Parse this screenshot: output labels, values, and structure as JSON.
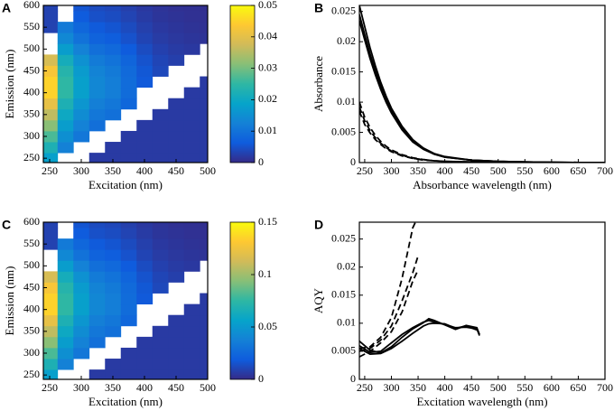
{
  "chart_data": [
    {
      "type": "heatmap",
      "panel_label": "A",
      "xlabel": "Excitation (nm)",
      "ylabel": "Emission (nm)",
      "x": [
        250,
        275,
        300,
        325,
        350,
        375,
        400,
        425,
        450,
        475,
        500
      ],
      "y": [
        250,
        275,
        300,
        325,
        350,
        375,
        400,
        425,
        450,
        475,
        500,
        525,
        550,
        575,
        600
      ],
      "z": [
        [
          0.018,
          null,
          null,
          0.002,
          0.002,
          0.002,
          0.002,
          0.002,
          0.002,
          0.002,
          0.002
        ],
        [
          0.0225,
          0.0125,
          null,
          null,
          0.002,
          0.002,
          0.002,
          0.002,
          0.002,
          0.002,
          0.002
        ],
        [
          0.027,
          0.015,
          0.0108,
          null,
          null,
          0.002,
          0.002,
          0.002,
          0.002,
          0.002,
          0.002
        ],
        [
          0.0315,
          0.0175,
          0.0126,
          0.0095,
          null,
          null,
          0.002,
          0.002,
          0.002,
          0.002,
          0.002
        ],
        [
          0.036,
          0.02,
          0.0144,
          0.0108,
          0.0096,
          null,
          null,
          0.002,
          0.002,
          0.002,
          0.002
        ],
        [
          0.0405,
          0.0225,
          0.0162,
          0.0122,
          0.0108,
          0.0081,
          null,
          null,
          0.002,
          0.002,
          0.002
        ],
        [
          0.045,
          0.025,
          0.018,
          0.0135,
          0.012,
          0.009,
          null,
          null,
          null,
          0.002,
          0.002
        ],
        [
          0.045,
          0.025,
          0.018,
          0.0135,
          0.012,
          0.009,
          0.006,
          null,
          null,
          null,
          0.002
        ],
        [
          0.0428,
          0.0238,
          0.0171,
          0.0128,
          0.0114,
          0.0086,
          0.0057,
          0.0038,
          null,
          null,
          null
        ],
        [
          0.0383,
          0.0213,
          0.0153,
          0.0115,
          0.0102,
          0.0077,
          0.0051,
          0.0034,
          0.0026,
          null,
          null
        ],
        [
          null,
          0.0175,
          0.0126,
          0.0095,
          0.0084,
          0.0063,
          0.0042,
          0.0028,
          0.0021,
          0.0018,
          null
        ],
        [
          null,
          0.0138,
          0.0099,
          0.0074,
          0.0066,
          0.005,
          0.0033,
          0.0022,
          0.0017,
          0.0014,
          0.0011
        ],
        [
          0.003,
          0.0113,
          0.0081,
          0.0061,
          0.0054,
          0.0041,
          0.0027,
          0.0018,
          0.0014,
          0.0011,
          0.0009
        ],
        [
          0.003,
          null,
          0.0063,
          0.0047,
          0.0042,
          0.0032,
          0.0021,
          0.0014,
          0.0011,
          0.0009,
          0.0007
        ],
        [
          0.003,
          null,
          0.0054,
          0.0041,
          0.0036,
          0.0027,
          0.0018,
          0.0012,
          0.0009,
          0.0008,
          0.0006
        ]
      ],
      "xlim": [
        240,
        500
      ],
      "ylim": [
        240,
        600
      ],
      "xticks": [
        250,
        300,
        350,
        400,
        450,
        500
      ],
      "yticks": [
        250,
        300,
        350,
        400,
        450,
        500,
        550,
        600
      ],
      "zlim": [
        0,
        0.05
      ],
      "zticks": [
        0,
        0.01,
        0.02,
        0.03,
        0.04,
        0.05
      ],
      "colormap": [
        "#352a87",
        "#0f5cdd",
        "#1481d6",
        "#06a4ca",
        "#2eb7a4",
        "#87bf77",
        "#d1bb59",
        "#fec832",
        "#f9fb0e"
      ]
    },
    {
      "type": "line",
      "panel_label": "B",
      "xlabel": "Absorbance wavelength (nm)",
      "ylabel": "Absorbance",
      "x": [
        240,
        250,
        260,
        270,
        280,
        290,
        300,
        320,
        340,
        360,
        380,
        400,
        450,
        500,
        550,
        600,
        650,
        700
      ],
      "series": [
        {
          "color": "#000000",
          "dash": false,
          "values": [
            0.026,
            0.0225,
            0.019,
            0.016,
            0.0133,
            0.011,
            0.009,
            0.006,
            0.0038,
            0.0024,
            0.0015,
            0.001,
            0.0004,
            0.0002,
            0.0001,
            5e-05,
            2e-05,
            0
          ]
        },
        {
          "color": "#000000",
          "dash": false,
          "values": [
            0.0245,
            0.0212,
            0.018,
            0.0152,
            0.0127,
            0.0105,
            0.0086,
            0.0057,
            0.0036,
            0.0023,
            0.0014,
            0.0009,
            0.0004,
            0.0002,
            0.0001,
            5e-05,
            2e-05,
            0
          ]
        },
        {
          "color": "#000000",
          "dash": false,
          "values": [
            0.0235,
            0.0203,
            0.0172,
            0.0145,
            0.0121,
            0.01,
            0.0082,
            0.0054,
            0.0034,
            0.0022,
            0.0014,
            0.0009,
            0.0004,
            0.0002,
            0.0001,
            5e-05,
            2e-05,
            0
          ]
        },
        {
          "color": "#000000",
          "dash": true,
          "values": [
            0.01,
            0.0075,
            0.0058,
            0.0045,
            0.0035,
            0.0027,
            0.0021,
            0.0013,
            0.0008,
            0.0005,
            0.0003,
            0.0002,
            0.0001,
            5e-05,
            0,
            0,
            0,
            0
          ]
        },
        {
          "color": "#000000",
          "dash": true,
          "values": [
            0.0092,
            0.0069,
            0.0053,
            0.0041,
            0.0032,
            0.0025,
            0.0019,
            0.0012,
            0.0007,
            0.0005,
            0.0003,
            0.0002,
            0.0001,
            5e-05,
            0,
            0,
            0,
            0
          ]
        },
        {
          "color": "#000000",
          "dash": true,
          "values": [
            0.0085,
            0.0063,
            0.0049,
            0.0038,
            0.003,
            0.0023,
            0.0018,
            0.0011,
            0.0007,
            0.0004,
            0.0003,
            0.0002,
            0.0001,
            5e-05,
            0,
            0,
            0,
            0
          ]
        }
      ],
      "xlim": [
        240,
        700
      ],
      "ylim": [
        0,
        0.026
      ],
      "xticks": [
        250,
        300,
        350,
        400,
        450,
        500,
        550,
        600,
        650,
        700
      ],
      "yticks": [
        0,
        0.005,
        0.01,
        0.015,
        0.02,
        0.025
      ]
    },
    {
      "type": "heatmap",
      "panel_label": "C",
      "xlabel": "Excitation (nm)",
      "ylabel": "Emission (nm)",
      "x": [
        250,
        275,
        300,
        325,
        350,
        375,
        400,
        425,
        450,
        475,
        500
      ],
      "y": [
        250,
        275,
        300,
        325,
        350,
        375,
        400,
        425,
        450,
        475,
        500,
        525,
        550,
        575,
        600
      ],
      "z": [
        [
          0.054,
          null,
          null,
          0.006,
          0.006,
          0.006,
          0.006,
          0.006,
          0.006,
          0.006,
          0.006
        ],
        [
          0.0675,
          0.0375,
          null,
          null,
          0.006,
          0.006,
          0.006,
          0.006,
          0.006,
          0.006,
          0.006
        ],
        [
          0.081,
          0.045,
          0.0324,
          null,
          null,
          0.006,
          0.006,
          0.006,
          0.006,
          0.006,
          0.006
        ],
        [
          0.0945,
          0.0525,
          0.0378,
          0.0285,
          null,
          null,
          0.006,
          0.006,
          0.006,
          0.006,
          0.006
        ],
        [
          0.108,
          0.06,
          0.0432,
          0.0324,
          0.0288,
          null,
          null,
          0.006,
          0.006,
          0.006,
          0.006
        ],
        [
          0.1215,
          0.0675,
          0.0486,
          0.0366,
          0.0324,
          0.0243,
          null,
          null,
          0.006,
          0.006,
          0.006
        ],
        [
          0.135,
          0.075,
          0.054,
          0.0405,
          0.036,
          0.027,
          null,
          null,
          null,
          0.006,
          0.006
        ],
        [
          0.135,
          0.075,
          0.054,
          0.0405,
          0.036,
          0.027,
          0.018,
          null,
          null,
          null,
          0.006
        ],
        [
          0.1284,
          0.0714,
          0.0513,
          0.0384,
          0.0342,
          0.0258,
          0.0171,
          0.0114,
          null,
          null,
          null
        ],
        [
          0.1149,
          0.0639,
          0.0459,
          0.0345,
          0.0306,
          0.0231,
          0.0153,
          0.0102,
          0.0078,
          null,
          null
        ],
        [
          null,
          0.0525,
          0.0378,
          0.0285,
          0.0252,
          0.0189,
          0.0126,
          0.0084,
          0.0063,
          0.0054,
          null
        ],
        [
          null,
          0.0414,
          0.0297,
          0.0222,
          0.0198,
          0.015,
          0.0099,
          0.0066,
          0.0051,
          0.0042,
          0.0033
        ],
        [
          0.009,
          0.0339,
          0.0243,
          0.0183,
          0.0162,
          0.0123,
          0.0081,
          0.0054,
          0.0042,
          0.0033,
          0.0027
        ],
        [
          0.009,
          null,
          0.0189,
          0.0141,
          0.0126,
          0.0096,
          0.0063,
          0.0042,
          0.0033,
          0.0027,
          0.0021
        ],
        [
          0.009,
          null,
          0.0162,
          0.0123,
          0.0108,
          0.0081,
          0.0054,
          0.0036,
          0.0027,
          0.0024,
          0.0018
        ]
      ],
      "xlim": [
        240,
        500
      ],
      "ylim": [
        240,
        600
      ],
      "xticks": [
        250,
        300,
        350,
        400,
        450,
        500
      ],
      "yticks": [
        250,
        300,
        350,
        400,
        450,
        500,
        550,
        600
      ],
      "zlim": [
        0,
        0.15
      ],
      "zticks": [
        0,
        0.05,
        0.1,
        0.15
      ],
      "colormap": [
        "#352a87",
        "#0f5cdd",
        "#1481d6",
        "#06a4ca",
        "#2eb7a4",
        "#87bf77",
        "#d1bb59",
        "#fec832",
        "#f9fb0e"
      ]
    },
    {
      "type": "line",
      "panel_label": "D",
      "xlabel": "Excitation wavelength (nm)",
      "ylabel": "AQY",
      "series": [
        {
          "color": "#000000",
          "dash": false,
          "x": [
            240,
            260,
            280,
            300,
            320,
            340,
            360,
            370,
            380,
            400,
            420,
            440,
            460,
            465
          ],
          "values": [
            0.006,
            0.0048,
            0.005,
            0.0065,
            0.008,
            0.0092,
            0.0102,
            0.0105,
            0.0102,
            0.0098,
            0.0092,
            0.0093,
            0.009,
            0.0078
          ]
        },
        {
          "color": "#000000",
          "dash": false,
          "x": [
            240,
            260,
            280,
            300,
            320,
            340,
            360,
            370,
            380,
            400,
            420,
            440,
            460,
            465
          ],
          "values": [
            0.0068,
            0.0052,
            0.0047,
            0.0058,
            0.0075,
            0.009,
            0.0101,
            0.0108,
            0.0105,
            0.0097,
            0.0089,
            0.0096,
            0.0092,
            0.008
          ]
        },
        {
          "color": "#000000",
          "dash": false,
          "x": [
            240,
            260,
            280,
            300,
            320,
            340,
            360,
            370,
            380,
            400,
            420,
            440,
            460
          ],
          "values": [
            0.0055,
            0.0045,
            0.0046,
            0.0055,
            0.0068,
            0.0082,
            0.0095,
            0.0099,
            0.01,
            0.0099,
            0.0091,
            0.0095,
            0.0088
          ]
        },
        {
          "color": "#000000",
          "dash": true,
          "x": [
            240,
            260,
            280,
            300,
            320,
            340,
            350
          ],
          "values": [
            0.0055,
            0.0058,
            0.0075,
            0.011,
            0.018,
            0.027,
            0.029
          ]
        },
        {
          "color": "#000000",
          "dash": true,
          "x": [
            240,
            260,
            280,
            300,
            320,
            340,
            350
          ],
          "values": [
            0.005,
            0.0055,
            0.007,
            0.0095,
            0.014,
            0.019,
            0.022
          ]
        },
        {
          "color": "#000000",
          "dash": true,
          "x": [
            240,
            260,
            280,
            300,
            320,
            340,
            350
          ],
          "values": [
            0.004,
            0.005,
            0.0065,
            0.0085,
            0.012,
            0.0175,
            0.0195
          ]
        }
      ],
      "xlim": [
        240,
        700
      ],
      "ylim": [
        0,
        0.028
      ],
      "xticks": [
        250,
        300,
        350,
        400,
        450,
        500,
        550,
        600,
        650,
        700
      ],
      "yticks": [
        0,
        0.005,
        0.01,
        0.015,
        0.02,
        0.025
      ]
    }
  ]
}
